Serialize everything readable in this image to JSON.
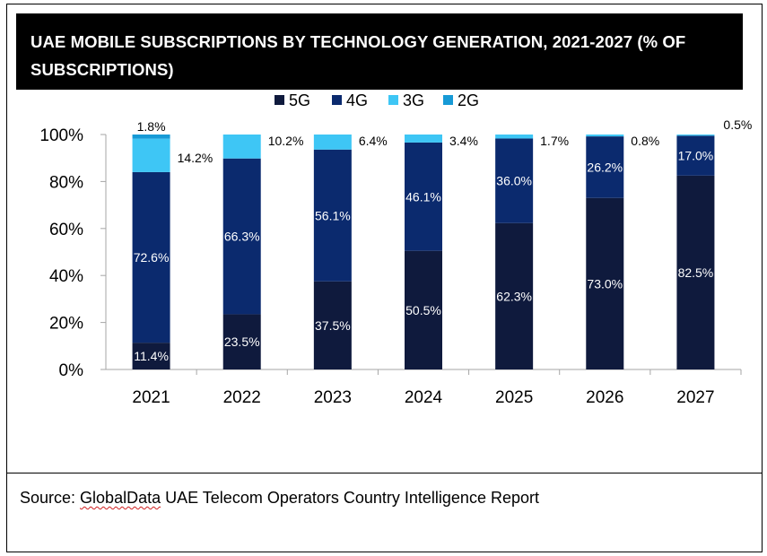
{
  "header": {
    "title": "UAE MOBILE SUBSCRIPTIONS BY TECHNOLOGY GENERATION, 2021-2027 (% OF SUBSCRIPTIONS)"
  },
  "footer": {
    "source_prefix": "Source: ",
    "source_brand": "GlobalData",
    "source_rest": " UAE Telecom Operators Country Intelligence Report"
  },
  "chart_data": {
    "type": "bar",
    "stacked": true,
    "categories": [
      "2021",
      "2022",
      "2023",
      "2024",
      "2025",
      "2026",
      "2027"
    ],
    "series": [
      {
        "name": "5G",
        "color": "#0f1a3d",
        "values": [
          11.4,
          23.5,
          37.5,
          50.5,
          62.3,
          73.0,
          82.5
        ]
      },
      {
        "name": "4G",
        "color": "#0b2a6e",
        "values": [
          72.6,
          66.3,
          56.1,
          46.1,
          36.0,
          26.2,
          17.0
        ]
      },
      {
        "name": "3G",
        "color": "#3ec6f5",
        "values": [
          14.2,
          10.2,
          6.4,
          3.4,
          1.7,
          0.8,
          0.5
        ]
      },
      {
        "name": "2G",
        "color": "#179ad6",
        "values": [
          1.8,
          0,
          0,
          0,
          0,
          0,
          0
        ]
      }
    ],
    "data_labels": {
      "5G": [
        "11.4%",
        "23.5%",
        "37.5%",
        "50.5%",
        "62.3%",
        "73.0%",
        "82.5%"
      ],
      "4G": [
        "72.6%",
        "66.3%",
        "56.1%",
        "46.1%",
        "36.0%",
        "26.2%",
        "17.0%"
      ],
      "3G": [
        "14.2%",
        "10.2%",
        "6.4%",
        "3.4%",
        "1.7%",
        "0.8%",
        "0.5%"
      ],
      "2G": [
        "1.8%"
      ]
    },
    "yticks": [
      "0%",
      "20%",
      "40%",
      "60%",
      "80%",
      "100%"
    ],
    "ylim": [
      0,
      100
    ],
    "legend_position": "top",
    "grid": false
  }
}
